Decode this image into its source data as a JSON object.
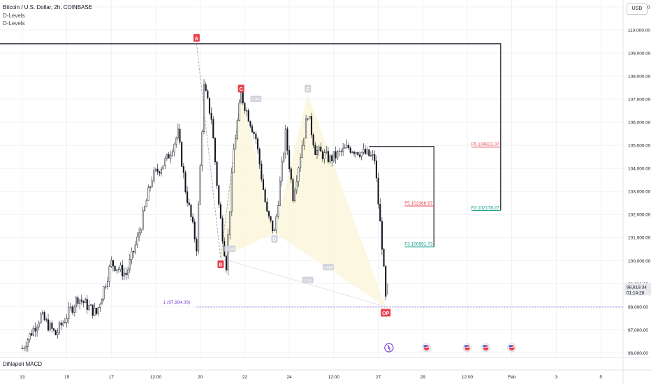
{
  "header": {
    "title": "Bitcoin / U.S. Dollar, 2h, COINBASE",
    "indicator1": "D-Levels",
    "indicator2": "D-Levels",
    "currency": "USD"
  },
  "macd_label": "DiNapoli MACD",
  "colors": {
    "red": "#e8404e",
    "green": "#089981",
    "text": "#131722",
    "grid": "#eef0f4",
    "pattern_fill": "#fbf6dd",
    "purple": "#7e3fd6"
  },
  "chart_data": {
    "type": "candlestick",
    "title": "Bitcoin / U.S. Dollar, 2h, COINBASE",
    "ylim": [
      95800,
      111300
    ],
    "y_ticks": [
      "96,000.00",
      "97,000.00",
      "98,000.00",
      "99,000.00",
      "100,000.00",
      "101,000.00",
      "102,000.00",
      "103,000.00",
      "104,000.00",
      "105,000.00",
      "106,000.00",
      "107,000.00",
      "108,000.00",
      "109,000.00",
      "110,000.00",
      "111,000.00"
    ],
    "y_tick_values": [
      96000,
      97000,
      98000,
      99000,
      100000,
      101000,
      102000,
      103000,
      104000,
      105000,
      106000,
      107000,
      108000,
      109000,
      110000,
      111000
    ],
    "x_ticks": [
      "13",
      "15",
      "17",
      "12:00",
      "20",
      "22",
      "24",
      "12:00",
      "27",
      "29",
      "12:00",
      "Feb",
      "3",
      "5"
    ],
    "x_tick_bars": [
      0,
      24,
      48,
      72,
      96,
      120,
      144,
      168,
      192,
      216,
      240,
      264,
      288,
      312
    ],
    "bars_per_day": 12,
    "x_range_bars": [
      -12,
      324
    ],
    "last_price": "98,819.34",
    "countdown": "01:14:28",
    "anchors": [
      {
        "bar": 0,
        "price": 96200
      },
      {
        "bar": 10,
        "price": 97600
      },
      {
        "bar": 18,
        "price": 96800
      },
      {
        "bar": 30,
        "price": 98400
      },
      {
        "bar": 40,
        "price": 97700
      },
      {
        "bar": 48,
        "price": 99900
      },
      {
        "bar": 56,
        "price": 99400
      },
      {
        "bar": 62,
        "price": 100900
      },
      {
        "bar": 70,
        "price": 103600
      },
      {
        "bar": 78,
        "price": 104400
      },
      {
        "bar": 84,
        "price": 105500
      },
      {
        "bar": 88,
        "price": 103100
      },
      {
        "bar": 94,
        "price": 100600
      },
      {
        "bar": 98,
        "price": 107500
      },
      {
        "bar": 102,
        "price": 106200
      },
      {
        "bar": 106,
        "price": 102400
      },
      {
        "bar": 110,
        "price": 99800
      },
      {
        "bar": 114,
        "price": 104800
      },
      {
        "bar": 118,
        "price": 107200
      },
      {
        "bar": 126,
        "price": 105300
      },
      {
        "bar": 132,
        "price": 102000
      },
      {
        "bar": 136,
        "price": 101200
      },
      {
        "bar": 142,
        "price": 105500
      },
      {
        "bar": 146,
        "price": 102800
      },
      {
        "bar": 154,
        "price": 106400
      },
      {
        "bar": 158,
        "price": 104800
      },
      {
        "bar": 166,
        "price": 104400
      },
      {
        "bar": 176,
        "price": 104900
      },
      {
        "bar": 186,
        "price": 104600
      },
      {
        "bar": 190,
        "price": 104400
      },
      {
        "bar": 192,
        "price": 102500
      },
      {
        "bar": 194,
        "price": 100700
      },
      {
        "bar": 196,
        "price": 98300
      },
      {
        "bar": 197,
        "price": 98819
      }
    ],
    "pattern": {
      "points": [
        {
          "label": "A",
          "bar": 94,
          "price": 109400
        },
        {
          "label": "B",
          "bar": 107,
          "price": 100100
        },
        {
          "label": "C",
          "bar": 118,
          "price": 107200
        },
        {
          "label": "D",
          "bar": 136,
          "price": 101200
        },
        {
          "label": "E",
          "bar": 154,
          "price": 107200
        },
        {
          "label": "OP",
          "bar": 196,
          "price": 98000
        }
      ],
      "ratio_labels": [
        {
          "text": "0.540",
          "bar": 112,
          "price": 100500
        },
        {
          "text": "0.366",
          "bar": 126,
          "price": 107000
        },
        {
          "text": "0.886",
          "bar": 165,
          "price": 99700
        },
        {
          "text": "1.16",
          "bar": 154,
          "price": 99150
        }
      ],
      "target_label": "1 (97,984.09)",
      "target_price": 97984.09
    },
    "d_levels": [
      {
        "name": "D-Levels 1",
        "top": 104950,
        "bar_start": 187,
        "bar_end": 222,
        "labels": [
          {
            "text": "F5   102368.97",
            "price": 102369,
            "color": "red"
          },
          {
            "text": "F3   100591.73",
            "price": 100592,
            "color": "green"
          }
        ]
      },
      {
        "name": "D-Levels 2",
        "top": 109400,
        "bar_start": -12,
        "bar_end": 258,
        "labels": [
          {
            "text": "F5   104921.07",
            "price": 104921,
            "color": "red"
          },
          {
            "text": "F3   102178.27",
            "price": 102178,
            "color": "green"
          }
        ]
      }
    ]
  }
}
